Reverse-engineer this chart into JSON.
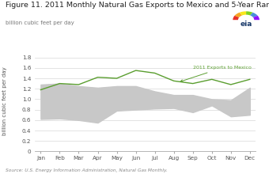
{
  "title": "Figure 11. 2011 Monthly Natural Gas Exports to Mexico and 5-Year Range",
  "ylabel": "billion cubic feet per day",
  "source": "Source: U.S. Energy Information Administration, Natural Gas Monthly.",
  "months": [
    "Jan",
    "Feb",
    "Mar",
    "Apr",
    "May",
    "Jun",
    "Jul",
    "Aug",
    "Sep",
    "Oct",
    "Nov",
    "Dec"
  ],
  "exports_2011": [
    1.18,
    1.3,
    1.28,
    1.42,
    1.4,
    1.55,
    1.5,
    1.35,
    1.3,
    1.38,
    1.28,
    1.38
  ],
  "range_high": [
    1.28,
    1.3,
    1.25,
    1.22,
    1.25,
    1.25,
    1.15,
    1.08,
    1.08,
    1.0,
    0.98,
    1.22
  ],
  "range_low": [
    0.62,
    0.63,
    0.6,
    0.55,
    0.78,
    0.8,
    0.82,
    0.83,
    0.75,
    0.88,
    0.67,
    0.7
  ],
  "ylim": [
    0,
    1.9
  ],
  "yticks": [
    0,
    0.2,
    0.4,
    0.6,
    0.8,
    1.0,
    1.2,
    1.4,
    1.6,
    1.8
  ],
  "line_color": "#5a9e2f",
  "fill_color": "#c8c8c8",
  "annotation_text": "2011 Exports to Mexico",
  "annotation_color": "#5a9e2f",
  "background_color": "#ffffff",
  "title_fontsize": 6.8,
  "ylabel_fontsize": 5.0,
  "tick_fontsize": 5.2,
  "source_fontsize": 4.2
}
